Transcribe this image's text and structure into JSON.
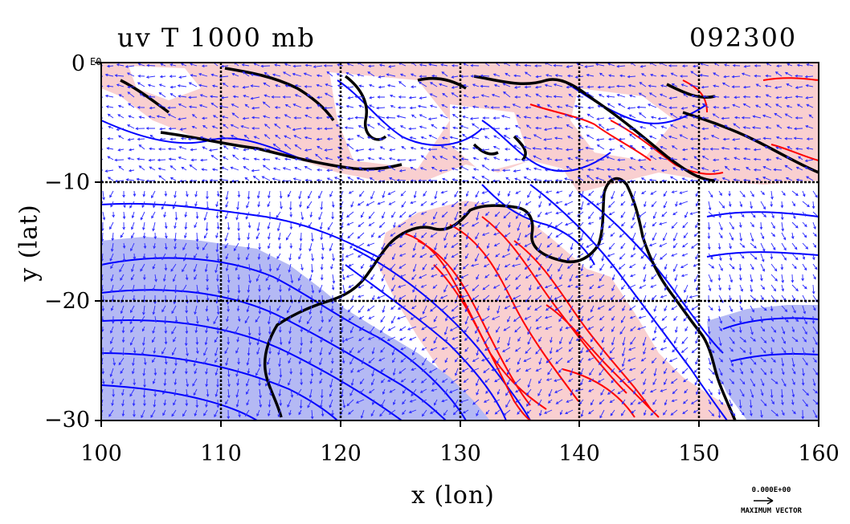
{
  "header": {
    "title": "uv T 1000 mb",
    "time_stamp": "092300"
  },
  "axes": {
    "x_label": "x (lon)",
    "y_label": "y (lat)",
    "x_ticks": [
      "100",
      "110",
      "120",
      "130",
      "140",
      "150",
      "160"
    ],
    "y_ticks": [
      "0",
      "−10",
      "−20",
      "−30"
    ],
    "y_exponent_label": "E0"
  },
  "chart_data": {
    "type": "heatmap",
    "x_range": [
      100,
      160
    ],
    "y_range": [
      -30,
      0
    ],
    "grid": true,
    "overlays": [
      "wind vectors",
      "temperature contours",
      "coastlines"
    ]
  },
  "legend": {
    "vector_scale_value": "0.000E+00",
    "vector_scale_label": "MAXIMUM VECTOR"
  },
  "colors": {
    "warm_fill": "#f9cfd0",
    "cold_fill": "#b4b9f4",
    "warm_contour": "#ff0000",
    "cold_contour": "#0000ff",
    "vector": "#2a2aff"
  }
}
